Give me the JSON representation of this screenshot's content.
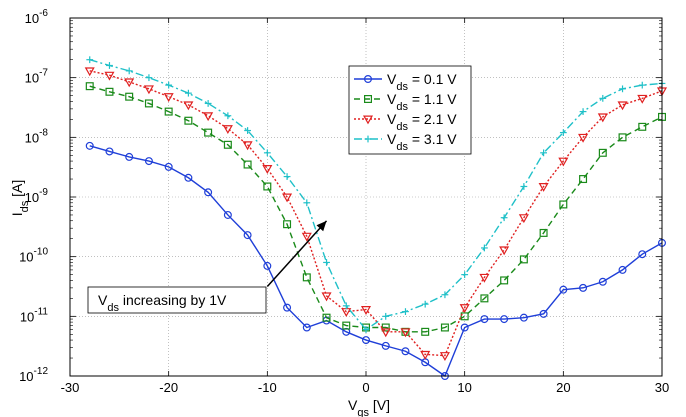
{
  "chart_data": {
    "type": "line",
    "title": "",
    "xlabel_main": "V",
    "xlabel_sub": "gs",
    "xlabel_unit": " [V]",
    "ylabel_main": "I",
    "ylabel_sub": "ds",
    "ylabel_unit": " [A]",
    "xlim": [
      -30,
      30
    ],
    "ylim_log10": [
      -12,
      -6
    ],
    "y_scale": "log",
    "grid": true,
    "legend_position": "upper-right",
    "x_ticks": [
      -30,
      -20,
      -10,
      0,
      10,
      20,
      30
    ],
    "x_tick_labels": [
      "-30",
      "-20",
      "-10",
      "0",
      "10",
      "20",
      "30"
    ],
    "y_tick_exponents": [
      -12,
      -11,
      -10,
      -9,
      -8,
      -7,
      -6
    ],
    "y_tick_base": "10",
    "y_tick_exp_labels": [
      "-12",
      "-11",
      "-10",
      "-9",
      "-8",
      "-7",
      "-6"
    ],
    "x": [
      -28,
      -26,
      -24,
      -22,
      -20,
      -18,
      -16,
      -14,
      -12,
      -10,
      -8,
      -6,
      -4,
      -2,
      0,
      2,
      4,
      6,
      8,
      10,
      12,
      14,
      16,
      18,
      20,
      22,
      24,
      26,
      28,
      30
    ],
    "series": [
      {
        "name_main": "V",
        "name_sub": "ds",
        "name_rest": " = 0.1 V",
        "color": "#1f3fd8",
        "dash": "",
        "marker": "circle",
        "values": [
          7.2e-09,
          5.8e-09,
          4.7e-09,
          4e-09,
          3.2e-09,
          2.1e-09,
          1.2e-09,
          5e-10,
          2.3e-10,
          7e-11,
          1.4e-11,
          6.5e-12,
          8.5e-12,
          5.5e-12,
          4e-12,
          3.2e-12,
          2.6e-12,
          1.7e-12,
          1e-12,
          6.5e-12,
          9e-12,
          9e-12,
          9.5e-12,
          1.1e-11,
          2.8e-11,
          3e-11,
          3.8e-11,
          6e-11,
          1.1e-10,
          1.7e-10
        ]
      },
      {
        "name_main": "V",
        "name_sub": "ds",
        "name_rest": " = 1.1 V",
        "color": "#1a8a1a",
        "dash": "6,4",
        "marker": "square",
        "values": [
          7.2e-08,
          5.8e-08,
          4.8e-08,
          3.7e-08,
          2.7e-08,
          1.9e-08,
          1.2e-08,
          7.5e-09,
          3.5e-09,
          1.5e-09,
          3.5e-10,
          4.5e-11,
          9.5e-12,
          7e-12,
          6.5e-12,
          6.5e-12,
          5.5e-12,
          5.5e-12,
          6.5e-12,
          1e-11,
          2e-11,
          4e-11,
          9e-11,
          2.5e-10,
          7.5e-10,
          2e-09,
          5.5e-09,
          1e-08,
          1.5e-08,
          2.2e-08
        ]
      },
      {
        "name_main": "V",
        "name_sub": "ds",
        "name_rest": " = 2.1 V",
        "color": "#e02020",
        "dash": "2,2",
        "marker": "triangle-down",
        "values": [
          1.3e-07,
          1.1e-07,
          8.5e-08,
          6.5e-08,
          4.8e-08,
          3.5e-08,
          2.3e-08,
          1.4e-08,
          7.5e-09,
          3e-09,
          1e-09,
          2.2e-10,
          2.2e-11,
          1.2e-11,
          1.3e-11,
          5.5e-12,
          5.5e-12,
          2.3e-12,
          2.2e-12,
          1.4e-11,
          4.5e-11,
          1.3e-10,
          4.5e-10,
          1.5e-09,
          4e-09,
          1e-08,
          2.2e-08,
          3.5e-08,
          4.5e-08,
          6e-08
        ]
      },
      {
        "name_main": "V",
        "name_sub": "ds",
        "name_rest": " = 3.1 V",
        "color": "#1fc0c8",
        "dash": "8,3,2,3",
        "marker": "plus",
        "values": [
          2e-07,
          1.6e-07,
          1.3e-07,
          1e-07,
          7.5e-08,
          5.5e-08,
          3.7e-08,
          2.3e-08,
          1.3e-08,
          5.5e-09,
          2.2e-09,
          8e-10,
          8e-11,
          1.5e-11,
          6e-12,
          1e-11,
          1.2e-11,
          1.6e-11,
          2.3e-11,
          5e-11,
          1.4e-10,
          4.5e-10,
          1.5e-09,
          5.5e-09,
          1.2e-08,
          2.7e-08,
          4.5e-08,
          6.5e-08,
          7.5e-08,
          8e-08
        ]
      }
    ],
    "annotation_box": {
      "text_main": "V",
      "text_sub": "ds",
      "text_rest": " increasing by 1V"
    },
    "arrow": {
      "from": [
        -10,
        -10.5
      ],
      "to": [
        -4,
        -9.4
      ]
    }
  }
}
